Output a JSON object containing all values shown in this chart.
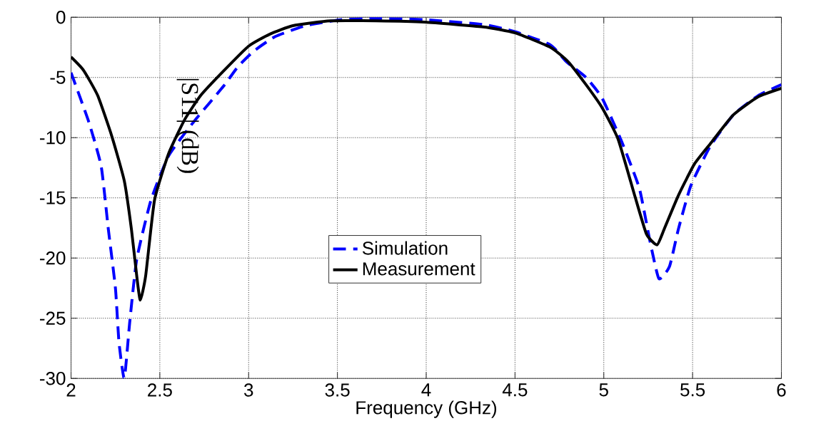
{
  "chart_data": {
    "type": "line",
    "xlabel": "Frequency (GHz)",
    "ylabel": "|S11| (dB)",
    "xlim": [
      2,
      6
    ],
    "ylim": [
      -30,
      0
    ],
    "xticks": [
      2,
      2.5,
      3,
      3.5,
      4,
      4.5,
      5,
      5.5,
      6
    ],
    "yticks": [
      -30,
      -25,
      -20,
      -15,
      -10,
      -5,
      0
    ],
    "grid": true,
    "legend": "center",
    "series": [
      {
        "name": "Simulation",
        "color": "#0000ff",
        "line_style": "dashed",
        "x": [
          2.0,
          2.1,
          2.17,
          2.21,
          2.25,
          2.27,
          2.3,
          2.33,
          2.37,
          2.45,
          2.55,
          2.69,
          2.86,
          2.94,
          3.03,
          3.15,
          3.32,
          3.52,
          3.72,
          3.99,
          4.32,
          4.5,
          4.7,
          4.79,
          4.9,
          4.99,
          5.1,
          5.2,
          5.26,
          5.31,
          5.37,
          5.42,
          5.49,
          5.6,
          5.73,
          5.87,
          6.0
        ],
        "values": [
          -4.6,
          -8.7,
          -12.4,
          -17.6,
          -22.5,
          -27.0,
          -30,
          -25.4,
          -20.1,
          -15.2,
          -11.5,
          -8.7,
          -5.7,
          -4.1,
          -2.8,
          -1.6,
          -0.7,
          -0.2,
          -0.1,
          -0.2,
          -0.6,
          -1.2,
          -2.3,
          -3.7,
          -5.0,
          -6.7,
          -10.3,
          -14.2,
          -18.6,
          -21.7,
          -20.7,
          -17.6,
          -14.0,
          -10.7,
          -8.1,
          -6.5,
          -5.6
        ]
      },
      {
        "name": "Measurement",
        "color": "#000000",
        "line_style": "solid",
        "x": [
          2.0,
          2.07,
          2.15,
          2.23,
          2.3,
          2.34,
          2.37,
          2.39,
          2.42,
          2.47,
          2.55,
          2.64,
          2.73,
          2.85,
          3.0,
          3.12,
          3.25,
          3.46,
          3.72,
          3.99,
          4.32,
          4.5,
          4.7,
          4.8,
          4.9,
          4.99,
          5.08,
          5.17,
          5.24,
          5.3,
          5.34,
          5.42,
          5.51,
          5.6,
          5.73,
          5.87,
          6.0
        ],
        "values": [
          -3.3,
          -4.4,
          -6.5,
          -9.9,
          -13.6,
          -17.6,
          -21.5,
          -23.5,
          -21.5,
          -15.2,
          -11.3,
          -8.5,
          -6.5,
          -4.6,
          -2.4,
          -1.4,
          -0.7,
          -0.3,
          -0.3,
          -0.4,
          -0.8,
          -1.3,
          -2.5,
          -3.7,
          -5.6,
          -7.5,
          -10.1,
          -14.6,
          -18.0,
          -18.9,
          -17.6,
          -14.8,
          -12.2,
          -10.5,
          -8.1,
          -6.6,
          -5.9
        ]
      }
    ]
  }
}
